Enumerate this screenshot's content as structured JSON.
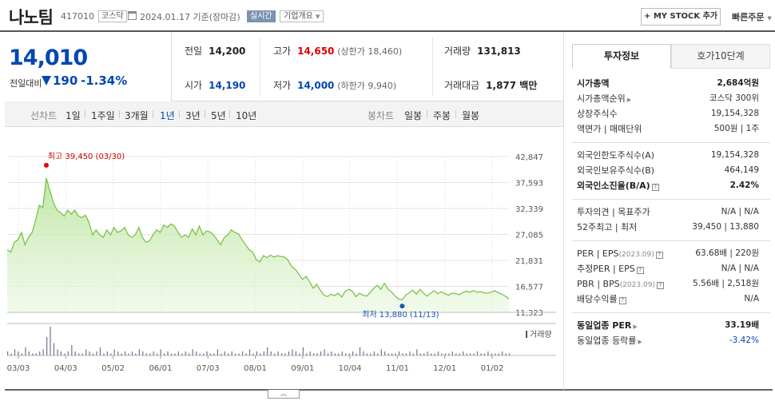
{
  "header": {
    "stock_name": "나노팀",
    "code": "417010",
    "market": "코스닥",
    "date": "2024.01.17 기준(장마감)",
    "realtime": "실시간",
    "overview": "기업개요",
    "my_stock": "+ MY STOCK 추가",
    "quick_order": "빠른주문"
  },
  "price": {
    "current": "14,010",
    "change_label": "전일대비",
    "change": "190",
    "change_pct": "-1.34%",
    "accent_color": "#0047b3"
  },
  "summary": {
    "prev_close_label": "전일",
    "prev_close": "14,200",
    "high_label": "고가",
    "high": "14,650",
    "upper_limit": "(상한가 18,460)",
    "volume_label": "거래량",
    "volume": "131,813",
    "open_label": "시가",
    "open": "14,190",
    "low_label": "저가",
    "low": "14,000",
    "lower_limit": "(하한가 9,940)",
    "amount_label": "거래대금",
    "amount": "1,877 백만"
  },
  "periods": {
    "line_chart": "선차트",
    "items": [
      "1일",
      "1주일",
      "3개월",
      "1년",
      "3년",
      "5년",
      "10년"
    ],
    "active": "1년",
    "candle_chart": "봉차트",
    "candle_items": [
      "일봉",
      "주봉",
      "월봉"
    ]
  },
  "chart_data": {
    "type": "area",
    "color": "#7cc24a",
    "y_ticks": [
      "42,847",
      "37,593",
      "32,339",
      "27,085",
      "21,831",
      "16,577",
      "11,323"
    ],
    "ylim": [
      11323,
      42847
    ],
    "x_ticks": [
      "03/03",
      "04/03",
      "05/02",
      "06/01",
      "07/03",
      "08/01",
      "09/01",
      "10/04",
      "11/01",
      "12/01",
      "01/02"
    ],
    "high_annotation": "최고 39,450 (03/30)",
    "low_annotation": "최저 13,880 (11/13)",
    "volume_label": "거래량",
    "values": [
      24000,
      23500,
      25500,
      26000,
      27500,
      25000,
      26500,
      27500,
      30000,
      33000,
      32500,
      38500,
      36000,
      33500,
      32000,
      31500,
      30800,
      32000,
      31200,
      32000,
      30800,
      30500,
      31000,
      29500,
      27000,
      28000,
      27000,
      26500,
      28000,
      27000,
      28500,
      27500,
      27800,
      28500,
      27000,
      26500,
      27000,
      28500,
      26500,
      25500,
      25800,
      27000,
      28000,
      27500,
      29000,
      28500,
      29200,
      28800,
      27500,
      26500,
      27000,
      26500,
      28200,
      27000,
      28800,
      27000,
      27800,
      27600,
      27000,
      26000,
      25000,
      26500,
      27000,
      28000,
      27500,
      27200,
      26000,
      25000,
      24000,
      23500,
      22000,
      21500,
      22800,
      22400,
      22900,
      22500,
      22800,
      22600,
      22500,
      21800,
      20500,
      20000,
      19000,
      18000,
      18600,
      17500,
      16200,
      17000,
      15800,
      14800,
      14500,
      15000,
      14700,
      15200,
      14400,
      15600,
      16000,
      15600,
      14500,
      15200,
      14800,
      14600,
      15300,
      16200,
      16800,
      16000,
      17200,
      16000,
      15500,
      14600,
      14000,
      13880,
      14800,
      15300,
      15800,
      15000,
      16000,
      15200,
      14600,
      15200,
      15700,
      15100,
      15500,
      15100,
      14800,
      15200,
      15100,
      14900,
      15300,
      15600,
      15400,
      15700,
      15400,
      15500,
      15300,
      15200,
      15400,
      15700,
      15300,
      15000,
      14600,
      14010
    ],
    "volumes": [
      2,
      1,
      3,
      2,
      1,
      4,
      2,
      1,
      1,
      2,
      3,
      9,
      14,
      6,
      3,
      2,
      1,
      2,
      5,
      2,
      1,
      1,
      3,
      2,
      1,
      2,
      4,
      1,
      2,
      1,
      3,
      2,
      1,
      2,
      1,
      2,
      1,
      3,
      2,
      1,
      1,
      2,
      1,
      3,
      1,
      2,
      1,
      1,
      2,
      1,
      2,
      1,
      3,
      2,
      1,
      1,
      2,
      1,
      1,
      3,
      1,
      2,
      1,
      2,
      1,
      1,
      2,
      1,
      3,
      1,
      2,
      1,
      2,
      4,
      2,
      1,
      2,
      1,
      1,
      2,
      3,
      2,
      1,
      4,
      1,
      2,
      1,
      1,
      2,
      3,
      1,
      2,
      1,
      1,
      2,
      1,
      1,
      2,
      1,
      4,
      2,
      1,
      1,
      2,
      1,
      3,
      2,
      1,
      1,
      1,
      2,
      1,
      1,
      2,
      1,
      3,
      1,
      1,
      2,
      1,
      1,
      2,
      1,
      1,
      1,
      2,
      1,
      1,
      2,
      1,
      1,
      1,
      2,
      1,
      1,
      2,
      1,
      1,
      1,
      2,
      1,
      1
    ]
  },
  "right_panel": {
    "tabs": [
      "투자정보",
      "호가10단계"
    ],
    "market_cap_label": "시가총액",
    "market_cap": "2,684억원",
    "market_cap_rank_label": "시가총액순위",
    "market_cap_rank": "코스닥 300위",
    "shares_label": "상장주식수",
    "shares": "19,154,328",
    "par_label": "액면가 | 매매단위",
    "par": "500원 | 1주",
    "foreign_limit_label": "외국인한도주식수(A)",
    "foreign_limit": "19,154,328",
    "foreign_hold_label": "외국인보유주식수(B)",
    "foreign_hold": "464,149",
    "foreign_ratio_label": "외국인소진율(B/A)",
    "foreign_ratio": "2.42%",
    "opinion_label": "투자의견 | 목표주가",
    "opinion": "N/A | N/A",
    "week52_label": "52주최고 | 최저",
    "week52": "39,450 | 13,880",
    "per_label": "PER | EPS",
    "per_date": "(2023.09)",
    "per": "63.68배 | 220원",
    "est_per_label": "추정PER | EPS",
    "est_per": "N/A | N/A",
    "pbr_label": "PBR | BPS",
    "pbr_date": "(2023.09)",
    "pbr": "5.56배 | 2,518원",
    "dividend_label": "배당수익률",
    "dividend": "N/A",
    "industry_per_label": "동일업종 PER",
    "industry_per": "33.19배",
    "industry_rate_label": "동일업종 등락률",
    "industry_rate": "-3.42%"
  }
}
